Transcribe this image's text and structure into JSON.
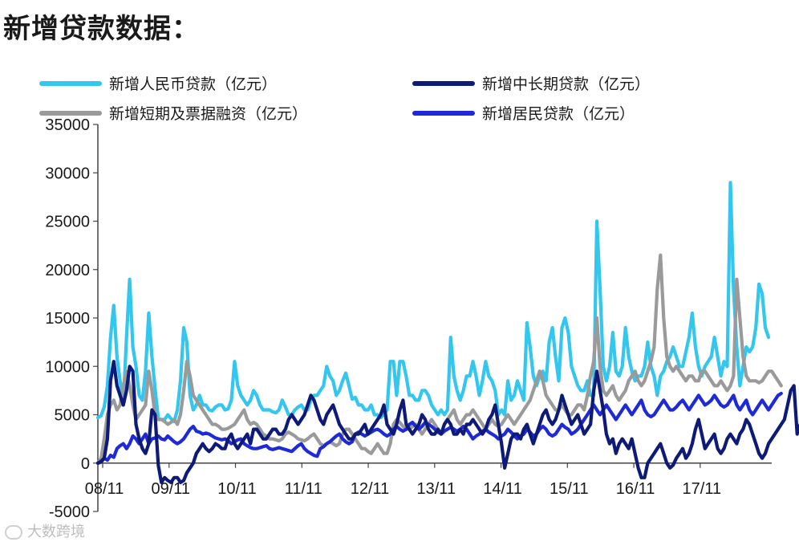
{
  "page": {
    "title": "新增贷款数据："
  },
  "watermark": {
    "text": "大数跨境"
  },
  "chart_data": {
    "type": "line",
    "x_ticks": [
      "08/11",
      "09/11",
      "10/11",
      "11/11",
      "12/11",
      "13/11",
      "14/11",
      "15/11",
      "16/11",
      "17/11"
    ],
    "ylim": [
      -5000,
      35000
    ],
    "y_ticks": [
      "-5000",
      "0",
      "5000",
      "10000",
      "15000",
      "20000",
      "25000",
      "30000",
      "35000"
    ],
    "grid": false,
    "legend_position": "top",
    "series": [
      {
        "name": "新增人民币贷款（亿元）",
        "color": "#33c6ee",
        "values": [
          4700,
          4900,
          5800,
          8000,
          13000,
          16300,
          11000,
          8500,
          6000,
          13000,
          19000,
          12000,
          10000,
          7000,
          6500,
          9500,
          15500,
          11000,
          7700,
          4600,
          4500,
          4500,
          5000,
          4600,
          4300,
          5500,
          8500,
          14000,
          12500,
          7000,
          5500,
          6000,
          7000,
          6000,
          6000,
          5500,
          5400,
          5800,
          6000,
          6000,
          5500,
          5600,
          6500,
          10500,
          8000,
          7000,
          6500,
          6000,
          6500,
          7500,
          7000,
          6000,
          5500,
          5500,
          5500,
          5300,
          5200,
          5500,
          6500,
          5800,
          5000,
          5000,
          5500,
          5800,
          6000,
          5500,
          5500,
          6500,
          7000,
          7000,
          7500,
          8000,
          10000,
          9000,
          8500,
          7000,
          7500,
          8500,
          9300,
          8000,
          6600,
          6800,
          6000,
          6000,
          5500,
          5500,
          6000,
          5000,
          5000,
          4700,
          5000,
          5500,
          10500,
          10500,
          7000,
          10500,
          10500,
          9000,
          7000,
          7000,
          6500,
          6500,
          7500,
          7500,
          7000,
          6000,
          5500,
          5000,
          5500,
          5000,
          5500,
          13000,
          9000,
          7500,
          6500,
          7500,
          9000,
          9000,
          10500,
          9000,
          7000,
          8500,
          10500,
          9000,
          8500,
          7500,
          5000,
          5500,
          5000,
          8500,
          6500,
          7000,
          8500,
          7500,
          6500,
          14500,
          12000,
          9000,
          8000,
          9000,
          9500,
          8500,
          12500,
          14000,
          11000,
          8500,
          14000,
          15000,
          13500,
          10000,
          9000,
          8000,
          7500,
          7500,
          8500,
          7000,
          7000,
          25000,
          18000,
          10000,
          8500,
          10000,
          13500,
          9500,
          9000,
          10000,
          14000,
          11000,
          9500,
          8500,
          9000,
          9000,
          10000,
          12500,
          10000,
          9000,
          7000,
          9000,
          9500,
          10500,
          11000,
          12000,
          11000,
          10000,
          10000,
          11500,
          13000,
          15500,
          12000,
          10000,
          9000,
          10000,
          10500,
          11000,
          13000,
          11000,
          9000,
          10500,
          10000,
          29000,
          18000,
          12000,
          8000,
          10000,
          12000,
          11500,
          12000,
          14000,
          18500,
          17500,
          14000,
          13000
        ]
      },
      {
        "name": "新增中长期贷款（亿元）",
        "color": "#0d1a78",
        "values": [
          0,
          100,
          500,
          2500,
          8500,
          10500,
          8000,
          7000,
          6000,
          7500,
          10000,
          9500,
          4000,
          2500,
          1500,
          1000,
          2000,
          5500,
          5000,
          -200,
          -2000,
          -1500,
          -1800,
          -2000,
          -1500,
          -1500,
          -2000,
          -1800,
          -1000,
          -500,
          0,
          1000,
          1500,
          2000,
          1500,
          1200,
          1500,
          2000,
          1800,
          1500,
          1500,
          2500,
          3000,
          2000,
          1500,
          2000,
          2500,
          3000,
          2000,
          3500,
          3500,
          3000,
          2500,
          2500,
          3000,
          3500,
          3500,
          3000,
          3000,
          3500,
          4500,
          5000,
          4500,
          4000,
          4500,
          5000,
          6000,
          7000,
          6500,
          5500,
          4500,
          4000,
          5000,
          5500,
          6000,
          5000,
          4000,
          3500,
          3000,
          2500,
          2500,
          3000,
          3000,
          3500,
          4000,
          3000,
          3500,
          4000,
          4500,
          5000,
          6000,
          4000,
          3500,
          3000,
          4000,
          5500,
          6500,
          4000,
          3500,
          3000,
          3500,
          4000,
          5000,
          4500,
          3500,
          3000,
          3000,
          3500,
          3000,
          4000,
          4500,
          4000,
          3000,
          3000,
          3500,
          3000,
          4000,
          4000,
          4500,
          4000,
          3500,
          3000,
          3500,
          4500,
          5000,
          6000,
          4000,
          2000,
          -500,
          1000,
          2500,
          3000,
          3000,
          2500,
          3500,
          4000,
          3000,
          2000,
          3000,
          4000,
          5000,
          5500,
          4500,
          4000,
          4500,
          5500,
          7000,
          6000,
          5000,
          4000,
          4500,
          5000,
          4000,
          3000,
          3500,
          4000,
          7500,
          9500,
          7500,
          5500,
          3000,
          2000,
          2500,
          1000,
          2000,
          2500,
          2000,
          1500,
          2500,
          1000,
          -500,
          -1500,
          -1500,
          0,
          500,
          1000,
          1500,
          2000,
          1000,
          0,
          -500,
          -200,
          500,
          1000,
          1500,
          500,
          1000,
          2000,
          3500,
          4500,
          3000,
          1500,
          2000,
          2500,
          3000,
          1500,
          1000,
          1500,
          2500,
          3000,
          2500,
          2000,
          3000,
          3500,
          4500,
          4000,
          3000,
          2000,
          1000,
          500,
          1000,
          2000,
          2500,
          3000,
          3500,
          4000,
          4500,
          6000,
          7500,
          8000,
          3000,
          4000,
          4500,
          5000
        ]
      },
      {
        "name": "新增短期及票据融资（亿元）",
        "color": "#9a9a9a",
        "values": [
          0,
          500,
          2500,
          5000,
          6000,
          6500,
          5500,
          6000,
          8000,
          9500,
          8000,
          6000,
          4500,
          5000,
          5500,
          6000,
          9500,
          7500,
          5000,
          4500,
          4500,
          4300,
          4000,
          4200,
          4500,
          4000,
          5000,
          7500,
          10500,
          9000,
          7000,
          6500,
          6000,
          5500,
          5000,
          4500,
          4000,
          4000,
          3800,
          3500,
          3500,
          3600,
          3800,
          4000,
          4500,
          5000,
          5500,
          4500,
          4000,
          4200,
          4000,
          3500,
          3000,
          2800,
          2500,
          2500,
          2400,
          2300,
          2500,
          3000,
          3200,
          3000,
          2800,
          2500,
          2400,
          2300,
          2500,
          2800,
          3000,
          2500,
          2000,
          1800,
          2000,
          2200,
          2000,
          1800,
          2000,
          3000,
          3500,
          3500,
          3000,
          2500,
          2000,
          1500,
          1500,
          1200,
          1000,
          1500,
          2000,
          1500,
          1000,
          1000,
          2000,
          4000,
          4500,
          4200,
          3800,
          3500,
          3500,
          3800,
          4000,
          3500,
          3000,
          3500,
          4000,
          4500,
          4000,
          3500,
          3000,
          4000,
          4500,
          5000,
          5500,
          4500,
          4000,
          4500,
          5000,
          5000,
          5500,
          5000,
          4500,
          4000,
          3500,
          4000,
          4500,
          4000,
          3800,
          4000,
          4500,
          5000,
          4500,
          4000,
          4500,
          5000,
          5500,
          6000,
          6500,
          7500,
          8500,
          9500,
          8500,
          7000,
          6500,
          6000,
          5500,
          5500,
          6000,
          5500,
          5000,
          5000,
          5500,
          6000,
          6000,
          5500,
          7000,
          9000,
          10500,
          15000,
          10000,
          7500,
          7000,
          7500,
          8000,
          7000,
          6500,
          7000,
          7500,
          8500,
          9000,
          9500,
          8500,
          8000,
          8500,
          9500,
          10500,
          12000,
          18000,
          21500,
          15000,
          11000,
          10000,
          9500,
          10000,
          9500,
          9000,
          8500,
          9000,
          9000,
          8500,
          8500,
          9500,
          9500,
          9000,
          8500,
          8000,
          8000,
          8500,
          8000,
          7500,
          8000,
          9000,
          19000,
          15000,
          11000,
          9000,
          8500,
          8500,
          8500,
          8300,
          8500,
          9000,
          9500,
          9500,
          9000,
          8500,
          8000
        ]
      },
      {
        "name": "新增居民贷款（亿元）",
        "color": "#1e2ad8",
        "values": [
          0,
          200,
          500,
          300,
          800,
          600,
          1500,
          1800,
          2000,
          1500,
          2000,
          2800,
          2500,
          2000,
          2500,
          3000,
          2000,
          2500,
          2600,
          2800,
          2500,
          2400,
          2800,
          2500,
          2200,
          2000,
          2200,
          2500,
          3000,
          3500,
          3800,
          3300,
          3200,
          3000,
          3100,
          3000,
          2800,
          2600,
          2500,
          2400,
          2500,
          2300,
          2000,
          2200,
          2400,
          2500,
          2000,
          1800,
          1600,
          1500,
          1500,
          1600,
          1700,
          1800,
          1500,
          1400,
          1500,
          1600,
          1500,
          1400,
          1300,
          1200,
          1500,
          1800,
          2000,
          1500,
          1200,
          1000,
          800,
          700,
          1500,
          1700,
          2000,
          2200,
          2500,
          2800,
          3000,
          2500,
          2200,
          2000,
          2200,
          3000,
          3200,
          3000,
          2800,
          3000,
          3200,
          3400,
          3500,
          3300,
          3000,
          2800,
          3000,
          3500,
          3800,
          3500,
          3300,
          3500,
          4000,
          4200,
          3800,
          3500,
          3800,
          4200,
          4000,
          3800,
          3500,
          3200,
          3000,
          3300,
          3500,
          3700,
          3500,
          3300,
          3500,
          3800,
          3500,
          3000,
          2500,
          2800,
          3000,
          3300,
          3500,
          3200,
          3000,
          2800,
          2500,
          2800,
          3000,
          3500,
          3200,
          2800,
          2500,
          2800,
          3000,
          3500,
          3200,
          2800,
          3000,
          3500,
          3800,
          3500,
          3000,
          2800,
          3000,
          3500,
          4000,
          3700,
          3500,
          3000,
          3200,
          3500,
          4000,
          4500,
          5000,
          5500,
          6000,
          5500,
          5000,
          5500,
          6000,
          5500,
          5000,
          4500,
          5000,
          5500,
          6000,
          5500,
          5000,
          5500,
          6000,
          6500,
          5500,
          5000,
          4800,
          5000,
          5500,
          6000,
          6500,
          6000,
          5500,
          5500,
          5800,
          6200,
          6500,
          6000,
          5500,
          6000,
          6500,
          7000,
          6500,
          6000,
          6200,
          6500,
          7000,
          6500,
          6000,
          5800,
          6000,
          6500,
          7000,
          6000,
          5500,
          6000,
          6500,
          5500,
          5000,
          5500,
          6000,
          6500,
          6000,
          5500,
          6000,
          6500,
          7000,
          7200
        ]
      }
    ]
  }
}
